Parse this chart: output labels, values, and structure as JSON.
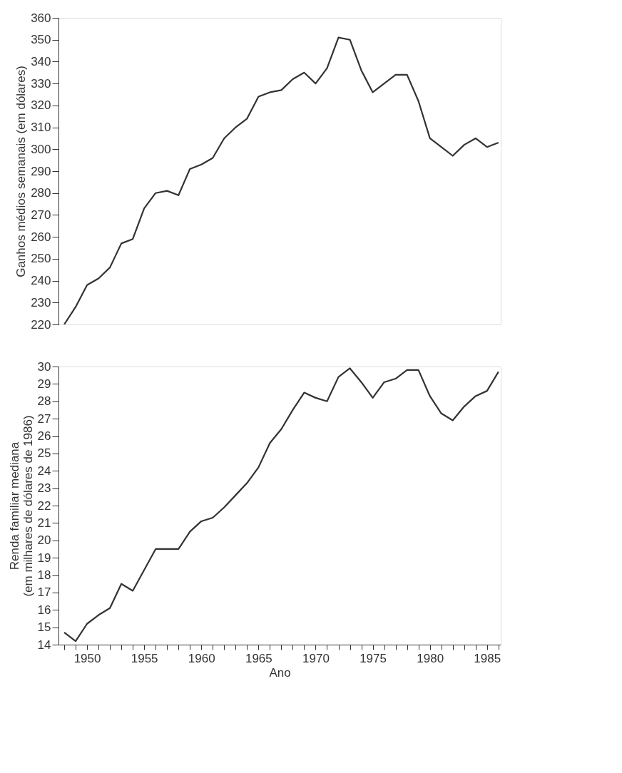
{
  "chart_data": [
    {
      "type": "line",
      "ylabel": "Ganhos médios semanais (em dólares)",
      "tick_labels": "y",
      "grid": false,
      "marker": "none",
      "line_style": "solid",
      "x": [
        1948,
        1949,
        1950,
        1951,
        1952,
        1953,
        1954,
        1955,
        1956,
        1957,
        1958,
        1959,
        1960,
        1961,
        1962,
        1963,
        1964,
        1965,
        1966,
        1967,
        1968,
        1969,
        1970,
        1971,
        1972,
        1973,
        1974,
        1975,
        1976,
        1977,
        1978,
        1979,
        1980,
        1981,
        1982,
        1983,
        1984,
        1985,
        1986
      ],
      "series": [
        {
          "color": "#333333",
          "values": [
            220,
            228,
            238,
            241,
            246,
            257,
            259,
            273,
            280,
            281,
            279,
            291,
            293,
            296,
            305,
            310,
            314,
            324,
            326,
            327,
            332,
            335,
            330,
            337,
            351,
            350,
            336,
            326,
            330,
            334,
            334,
            322,
            305,
            301,
            297,
            302,
            305,
            301,
            303
          ]
        }
      ],
      "xlim": [
        1947.5,
        1986.2
      ],
      "ylim": [
        220,
        360
      ],
      "yticks": [
        220,
        230,
        240,
        250,
        260,
        270,
        280,
        290,
        300,
        310,
        320,
        330,
        340,
        350,
        360
      ]
    },
    {
      "type": "line",
      "xlabel": "Ano",
      "ylabel": "Renda familiar mediana\n(em milhares de dólares de 1986)",
      "grid": false,
      "marker": "none",
      "line_style": "solid",
      "x": [
        1948,
        1949,
        1950,
        1951,
        1952,
        1953,
        1954,
        1955,
        1956,
        1957,
        1958,
        1959,
        1960,
        1961,
        1962,
        1963,
        1964,
        1965,
        1966,
        1967,
        1968,
        1969,
        1970,
        1971,
        1972,
        1973,
        1974,
        1975,
        1976,
        1977,
        1978,
        1979,
        1980,
        1981,
        1982,
        1983,
        1984,
        1985,
        1986
      ],
      "series": [
        {
          "color": "#333333",
          "values": [
            14.7,
            14.2,
            15.2,
            15.7,
            16.1,
            17.5,
            17.1,
            18.3,
            19.5,
            19.5,
            19.5,
            20.5,
            21.1,
            21.3,
            21.9,
            22.6,
            23.3,
            24.2,
            25.6,
            26.4,
            27.5,
            28.5,
            28.2,
            28.0,
            29.4,
            29.9,
            29.1,
            28.2,
            29.1,
            29.3,
            29.8,
            29.8,
            28.3,
            27.3,
            26.9,
            27.7,
            28.3,
            28.6,
            29.7
          ]
        }
      ],
      "xlim": [
        1947.5,
        1986.2
      ],
      "xticks": [
        {
          "value": 1948,
          "label": null
        },
        {
          "value": 1949,
          "label": null
        },
        1950,
        {
          "value": 1951,
          "label": null
        },
        {
          "value": 1952,
          "label": null
        },
        {
          "value": 1953,
          "label": null
        },
        {
          "value": 1954,
          "label": null
        },
        1955,
        {
          "value": 1956,
          "label": null
        },
        {
          "value": 1957,
          "label": null
        },
        {
          "value": 1958,
          "label": null
        },
        {
          "value": 1959,
          "label": null
        },
        1960,
        {
          "value": 1961,
          "label": null
        },
        {
          "value": 1962,
          "label": null
        },
        {
          "value": 1963,
          "label": null
        },
        {
          "value": 1964,
          "label": null
        },
        1965,
        {
          "value": 1966,
          "label": null
        },
        {
          "value": 1967,
          "label": null
        },
        {
          "value": 1968,
          "label": null
        },
        {
          "value": 1969,
          "label": null
        },
        1970,
        {
          "value": 1971,
          "label": null
        },
        {
          "value": 1972,
          "label": null
        },
        {
          "value": 1973,
          "label": null
        },
        {
          "value": 1974,
          "label": null
        },
        1975,
        {
          "value": 1976,
          "label": null
        },
        {
          "value": 1977,
          "label": null
        },
        {
          "value": 1978,
          "label": null
        },
        {
          "value": 1979,
          "label": null
        },
        1980,
        {
          "value": 1981,
          "label": null
        },
        {
          "value": 1982,
          "label": null
        },
        {
          "value": 1983,
          "label": null
        },
        {
          "value": 1984,
          "label": null
        },
        1985,
        {
          "value": 1986,
          "label": null
        }
      ],
      "ylim": [
        14,
        30
      ],
      "yticks": [
        14,
        15,
        16,
        17,
        18,
        19,
        20,
        21,
        22,
        23,
        24,
        25,
        26,
        27,
        28,
        29,
        30
      ]
    }
  ]
}
